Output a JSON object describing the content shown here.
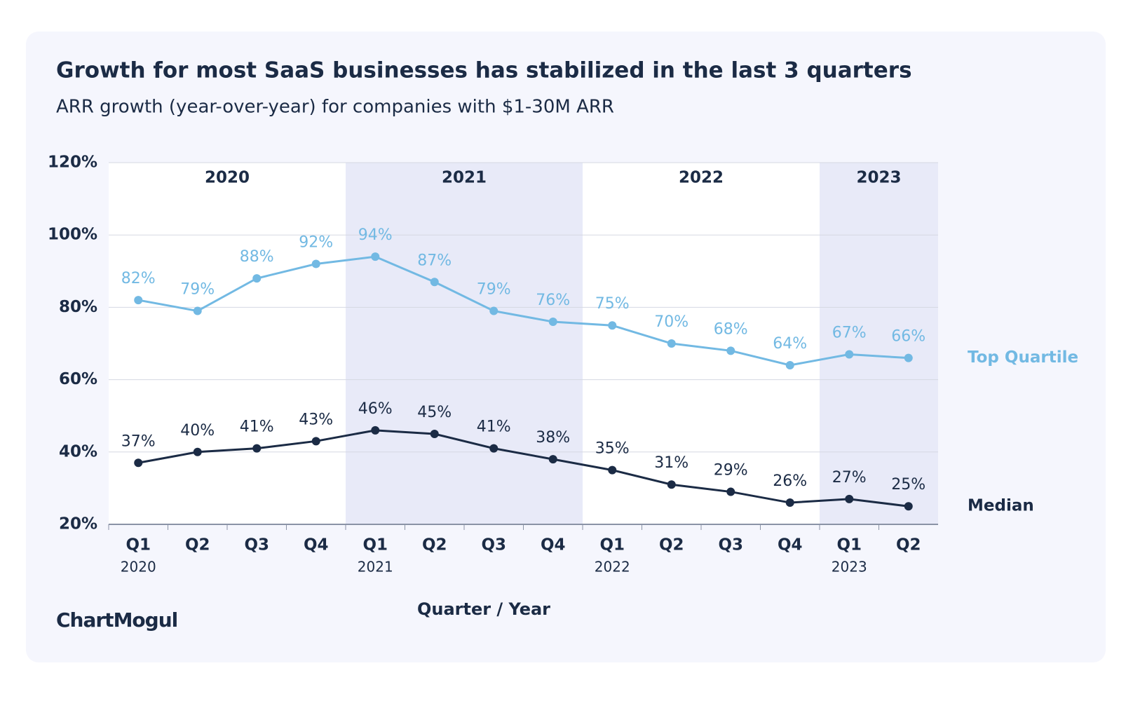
{
  "chart_data": {
    "type": "line",
    "title": "Growth for most SaaS businesses has stabilized in the last 3 quarters",
    "subtitle": "ARR growth (year-over-year) for companies with $1-30M ARR",
    "x_label": "Quarter / Year",
    "brand": "ChartMogul",
    "categories": [
      "Q1",
      "Q2",
      "Q3",
      "Q4",
      "Q1",
      "Q2",
      "Q3",
      "Q4",
      "Q1",
      "Q2",
      "Q3",
      "Q4",
      "Q1",
      "Q2"
    ],
    "category_years": [
      "2020",
      null,
      null,
      null,
      "2021",
      null,
      null,
      null,
      "2022",
      null,
      null,
      null,
      "2023",
      null
    ],
    "bands": [
      "2020",
      "2021",
      "2022",
      "2023"
    ],
    "band_color": "#e8eaf8",
    "series": [
      {
        "name": "Top Quartile",
        "color": "#72b9e3",
        "values": [
          82,
          79,
          88,
          92,
          94,
          87,
          79,
          76,
          75,
          70,
          68,
          64,
          67,
          66
        ],
        "value_labels": [
          "82%",
          "79%",
          "88%",
          "92%",
          "94%",
          "87%",
          "79%",
          "76%",
          "75%",
          "70%",
          "68%",
          "64%",
          "67%",
          "66%"
        ]
      },
      {
        "name": "Median",
        "color": "#1b2b45",
        "values": [
          37,
          40,
          41,
          43,
          46,
          45,
          41,
          38,
          35,
          31,
          29,
          26,
          27,
          25
        ],
        "value_labels": [
          "37%",
          "40%",
          "41%",
          "43%",
          "46%",
          "45%",
          "41%",
          "38%",
          "35%",
          "31%",
          "29%",
          "26%",
          "27%",
          "25%"
        ]
      }
    ],
    "ylim": [
      20,
      120
    ],
    "yticks": [
      {
        "value": 20,
        "label": "20%"
      },
      {
        "value": 40,
        "label": "40%"
      },
      {
        "value": 60,
        "label": "60%"
      },
      {
        "value": 80,
        "label": "80%"
      },
      {
        "value": 100,
        "label": "100%"
      },
      {
        "value": 120,
        "label": "120%"
      }
    ],
    "grid": true
  }
}
